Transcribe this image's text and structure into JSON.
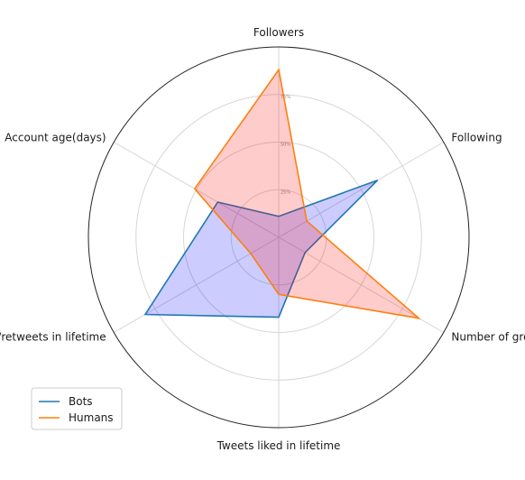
{
  "chart_data": {
    "type": "radar",
    "axes": [
      "Followers",
      "Following",
      "Number of groups",
      "Tweets liked in lifetime",
      "Tweets/retweets in lifetime",
      "Account age(days)"
    ],
    "rlim": [
      0,
      100
    ],
    "radial_ticks": [
      25,
      50,
      75
    ],
    "radial_tick_labels": [
      "25%",
      "50%",
      "75%"
    ],
    "grid": true,
    "legend_position": "lower-left",
    "series": [
      {
        "name": "Bots",
        "values": [
          11,
          60,
          16,
          42,
          81,
          37
        ],
        "color": "#1f77b4",
        "fill": "#0000ff",
        "fill_opacity": 0.2
      },
      {
        "name": "Humans",
        "values": [
          88,
          17,
          85,
          30,
          17,
          51
        ],
        "color": "#ff7f0e",
        "fill": "#ff0000",
        "fill_opacity": 0.2
      }
    ]
  }
}
